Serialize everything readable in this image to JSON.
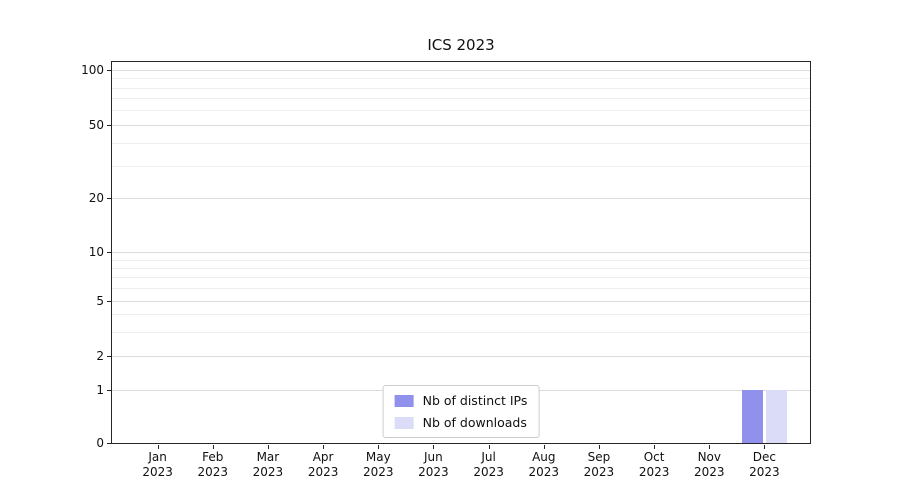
{
  "chart_data": {
    "type": "bar",
    "title": "ICS 2023",
    "x_labels": [
      {
        "month": "Jan",
        "year": "2023"
      },
      {
        "month": "Feb",
        "year": "2023"
      },
      {
        "month": "Mar",
        "year": "2023"
      },
      {
        "month": "Apr",
        "year": "2023"
      },
      {
        "month": "May",
        "year": "2023"
      },
      {
        "month": "Jun",
        "year": "2023"
      },
      {
        "month": "Jul",
        "year": "2023"
      },
      {
        "month": "Aug",
        "year": "2023"
      },
      {
        "month": "Sep",
        "year": "2023"
      },
      {
        "month": "Oct",
        "year": "2023"
      },
      {
        "month": "Nov",
        "year": "2023"
      },
      {
        "month": "Dec",
        "year": "2023"
      }
    ],
    "series": [
      {
        "name": "Nb of distinct IPs",
        "color": "#8f91ec",
        "values": [
          0,
          0,
          0,
          0,
          0,
          0,
          0,
          0,
          0,
          0,
          0,
          1
        ]
      },
      {
        "name": "Nb of downloads",
        "color": "#dadcf8",
        "values": [
          0,
          0,
          0,
          0,
          0,
          0,
          0,
          0,
          0,
          0,
          0,
          1
        ]
      }
    ],
    "y_scale": "symlog",
    "y_ticks": [
      0,
      1,
      2,
      5,
      10,
      20,
      50,
      100
    ],
    "y_minor_gridlines": [
      3,
      4,
      6,
      7,
      8,
      9,
      30,
      40,
      60,
      70,
      80,
      90
    ],
    "ylim": [
      0,
      115
    ],
    "grid": "horizontal",
    "legend_position": "lower center"
  },
  "colors": {
    "axis": "#262626",
    "grid_major": "#dcdcdc",
    "grid_minor": "#eeeeee",
    "text": "#111111"
  }
}
